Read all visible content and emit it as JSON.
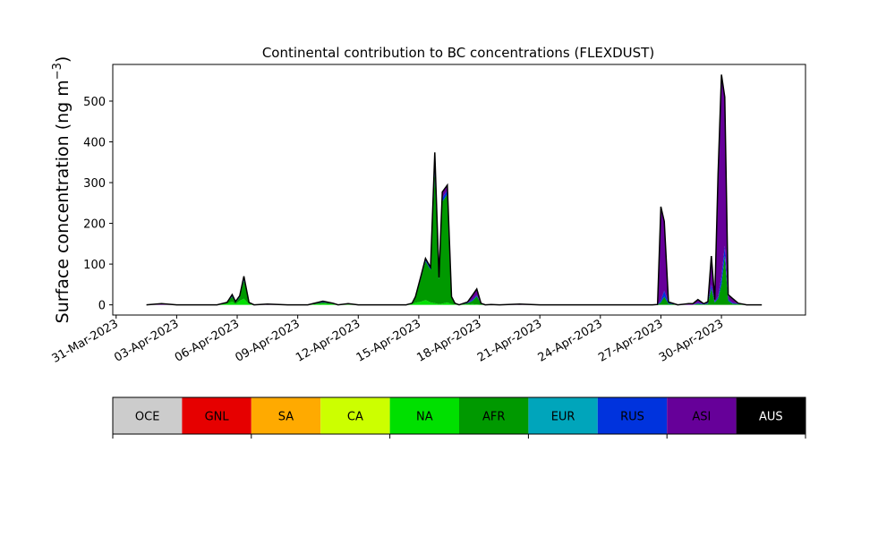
{
  "chart_data": {
    "type": "area",
    "title": "Continental contribution to BC concentrations (FLEXDUST)",
    "ylabel": "Surface concentration (ng m",
    "ylabel_sup": "−3",
    "ylabel_close": ")",
    "xlabel": "",
    "ylim": [
      -25,
      590
    ],
    "yticks": [
      0,
      100,
      200,
      300,
      400,
      500
    ],
    "xlim": [
      "2023-03-30T20:00",
      "2023-05-04T04:00"
    ],
    "xticks": [
      {
        "date": "2023-03-31",
        "label": "31-Mar-2023"
      },
      {
        "date": "2023-04-03",
        "label": "03-Apr-2023"
      },
      {
        "date": "2023-04-06",
        "label": "06-Apr-2023"
      },
      {
        "date": "2023-04-09",
        "label": "09-Apr-2023"
      },
      {
        "date": "2023-04-12",
        "label": "12-Apr-2023"
      },
      {
        "date": "2023-04-15",
        "label": "15-Apr-2023"
      },
      {
        "date": "2023-04-18",
        "label": "18-Apr-2023"
      },
      {
        "date": "2023-04-21",
        "label": "21-Apr-2023"
      },
      {
        "date": "2023-04-24",
        "label": "24-Apr-2023"
      },
      {
        "date": "2023-04-27",
        "label": "27-Apr-2023"
      },
      {
        "date": "2023-04-30",
        "label": "30-Apr-2023"
      }
    ],
    "legend": [
      {
        "code": "OCE",
        "color": "#cccccc"
      },
      {
        "code": "GNL",
        "color": "#e60000"
      },
      {
        "code": "SA",
        "color": "#ffaa00"
      },
      {
        "code": "CA",
        "color": "#ccff00"
      },
      {
        "code": "NA",
        "color": "#00e000"
      },
      {
        "code": "AFR",
        "color": "#009900"
      },
      {
        "code": "EUR",
        "color": "#00a5bb"
      },
      {
        "code": "RUS",
        "color": "#0033dd"
      },
      {
        "code": "ASI",
        "color": "#660099"
      },
      {
        "code": "AUS",
        "color": "#000000"
      }
    ],
    "x": [
      "2023-04-01T12:00",
      "2023-04-02T06:00",
      "2023-04-03T00:00",
      "2023-04-04T00:00",
      "2023-04-05T00:00",
      "2023-04-05T12:00",
      "2023-04-05T18:00",
      "2023-04-05T22:00",
      "2023-04-06T03:00",
      "2023-04-06T08:00",
      "2023-04-06T14:00",
      "2023-04-06T20:00",
      "2023-04-07T12:00",
      "2023-04-08T12:00",
      "2023-04-09T12:00",
      "2023-04-10T06:00",
      "2023-04-10T18:00",
      "2023-04-11T00:00",
      "2023-04-11T12:00",
      "2023-04-12T00:00",
      "2023-04-13T12:00",
      "2023-04-14T09:00",
      "2023-04-14T16:00",
      "2023-04-14T20:00",
      "2023-04-15T03:00",
      "2023-04-15T08:00",
      "2023-04-15T14:00",
      "2023-04-15T19:00",
      "2023-04-16T00:00",
      "2023-04-16T04:00",
      "2023-04-16T10:00",
      "2023-04-16T15:00",
      "2023-04-16T19:00",
      "2023-04-17T00:00",
      "2023-04-17T10:00",
      "2023-04-17T16:00",
      "2023-04-17T21:00",
      "2023-04-18T02:00",
      "2023-04-18T07:00",
      "2023-04-18T14:00",
      "2023-04-19T00:00",
      "2023-04-20T00:00",
      "2023-04-21T00:00",
      "2023-04-22T00:00",
      "2023-04-23T00:00",
      "2023-04-24T00:00",
      "2023-04-25T00:00",
      "2023-04-26T00:00",
      "2023-04-26T14:00",
      "2023-04-26T20:00",
      "2023-04-27T00:00",
      "2023-04-27T04:00",
      "2023-04-27T09:00",
      "2023-04-27T20:00",
      "2023-04-28T09:00",
      "2023-04-28T14:00",
      "2023-04-28T20:00",
      "2023-04-29T03:00",
      "2023-04-29T08:00",
      "2023-04-29T12:00",
      "2023-04-29T16:00",
      "2023-04-29T20:00",
      "2023-04-30T00:00",
      "2023-04-30T04:00",
      "2023-04-30T08:00",
      "2023-04-30T13:00",
      "2023-04-30T20:00",
      "2023-05-01T06:00",
      "2023-05-02T00:00"
    ],
    "series": [
      {
        "code": "NA",
        "values": [
          0,
          0,
          0,
          0,
          0,
          3,
          8,
          2,
          10,
          15,
          2,
          0,
          0,
          0,
          0,
          3,
          2,
          0,
          1,
          0,
          0,
          0,
          2,
          5,
          8,
          12,
          6,
          4,
          2,
          3,
          6,
          2,
          1,
          0,
          1,
          2,
          1,
          0,
          0,
          0,
          0,
          0,
          0,
          0,
          0,
          0,
          0,
          0,
          0,
          0,
          0,
          0,
          0,
          0,
          0,
          0,
          0,
          0,
          0,
          0,
          0,
          0,
          0,
          0,
          0,
          0,
          0,
          0,
          0
        ]
      },
      {
        "code": "AFR",
        "values": [
          0,
          0,
          0,
          0,
          0,
          3,
          12,
          3,
          8,
          45,
          3,
          0,
          0,
          0,
          0,
          3,
          1,
          0,
          1,
          0,
          0,
          0,
          2,
          12,
          60,
          95,
          80,
          320,
          60,
          250,
          265,
          15,
          2,
          0,
          3,
          8,
          20,
          3,
          0,
          0,
          0,
          0,
          0,
          0,
          0,
          0,
          0,
          0,
          0,
          0,
          6,
          20,
          3,
          0,
          0,
          0,
          3,
          1,
          3,
          40,
          5,
          15,
          50,
          120,
          10,
          3,
          2,
          0,
          0
        ]
      },
      {
        "code": "RUS",
        "values": [
          0,
          0,
          0,
          0,
          0,
          0,
          2,
          1,
          2,
          4,
          0,
          0,
          0,
          0,
          0,
          1,
          0,
          0,
          0,
          0,
          0,
          0,
          0,
          2,
          4,
          4,
          4,
          12,
          3,
          10,
          10,
          1,
          0,
          0,
          1,
          3,
          3,
          0,
          0,
          0,
          0,
          0,
          0,
          0,
          0,
          0,
          0,
          0,
          0,
          0,
          5,
          15,
          3,
          0,
          0,
          0,
          2,
          1,
          2,
          10,
          3,
          5,
          20,
          25,
          4,
          2,
          1,
          0,
          0
        ]
      },
      {
        "code": "ASI",
        "values": [
          0,
          3,
          0,
          0,
          0,
          0,
          3,
          2,
          2,
          6,
          1,
          0,
          2,
          0,
          0,
          2,
          1,
          0,
          1,
          0,
          0,
          0,
          0,
          1,
          2,
          3,
          2,
          38,
          2,
          14,
          13,
          2,
          1,
          0,
          2,
          11,
          15,
          1,
          0,
          1,
          0,
          2,
          0,
          0,
          0,
          0,
          0,
          0,
          0,
          1,
          230,
          170,
          1,
          0,
          3,
          3,
          8,
          1,
          3,
          70,
          5,
          300,
          495,
          365,
          11,
          11,
          1,
          0,
          0
        ]
      }
    ]
  }
}
